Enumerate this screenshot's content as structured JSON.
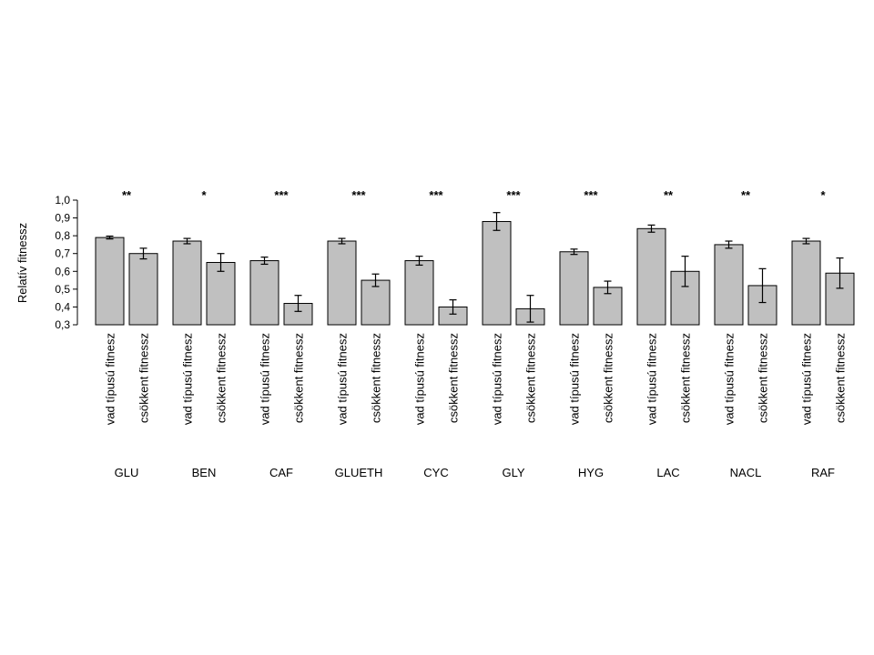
{
  "chart_data": {
    "type": "bar",
    "ylabel": "Relatív fitnessz",
    "ylim": [
      0.3,
      1.0
    ],
    "yticks": [
      "0,3",
      "0,4",
      "0,5",
      "0,6",
      "0,7",
      "0,8",
      "0,9",
      "1,0"
    ],
    "bar_labels": [
      "vad típusú fitnesz",
      "csökkent fitnessz"
    ],
    "bar_color": "#c0c0c0",
    "grid": false,
    "groups": [
      {
        "name": "GLU",
        "significance": "**",
        "values": [
          0.79,
          0.7
        ],
        "errors": [
          0.008,
          0.03
        ]
      },
      {
        "name": "BEN",
        "significance": "*",
        "values": [
          0.77,
          0.65
        ],
        "errors": [
          0.015,
          0.05
        ]
      },
      {
        "name": "CAF",
        "significance": "***",
        "values": [
          0.66,
          0.42
        ],
        "errors": [
          0.02,
          0.045
        ]
      },
      {
        "name": "GLUETH",
        "significance": "***",
        "values": [
          0.77,
          0.55
        ],
        "errors": [
          0.015,
          0.035
        ]
      },
      {
        "name": "CYC",
        "significance": "***",
        "values": [
          0.66,
          0.4
        ],
        "errors": [
          0.025,
          0.04
        ]
      },
      {
        "name": "GLY",
        "significance": "***",
        "values": [
          0.88,
          0.39
        ],
        "errors": [
          0.05,
          0.075
        ]
      },
      {
        "name": "HYG",
        "significance": "***",
        "values": [
          0.71,
          0.51
        ],
        "errors": [
          0.015,
          0.035
        ]
      },
      {
        "name": "LAC",
        "significance": "**",
        "values": [
          0.84,
          0.6
        ],
        "errors": [
          0.02,
          0.085
        ]
      },
      {
        "name": "NACL",
        "significance": "**",
        "values": [
          0.75,
          0.52
        ],
        "errors": [
          0.02,
          0.095
        ]
      },
      {
        "name": "RAF",
        "significance": "*",
        "values": [
          0.77,
          0.59
        ],
        "errors": [
          0.015,
          0.085
        ]
      }
    ]
  }
}
